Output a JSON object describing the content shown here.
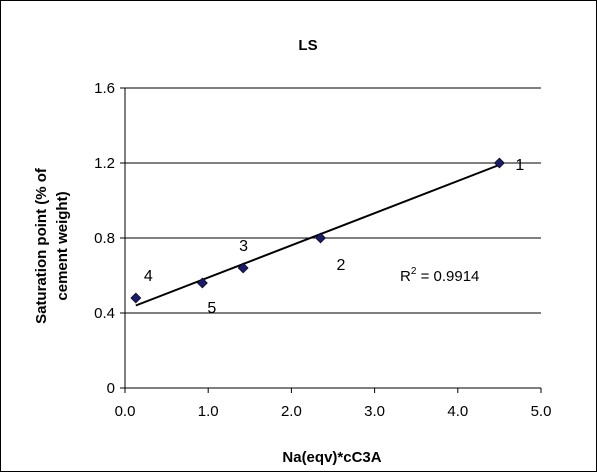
{
  "chart_data": {
    "type": "scatter",
    "title": "LS",
    "xlabel": "Na(eqv)*cC3A",
    "ylabel_line1": "Saturation point (% of",
    "ylabel_line2": "cement weight)",
    "xlim": [
      0,
      5
    ],
    "ylim": [
      0,
      1.6
    ],
    "x_ticks": [
      "0.0",
      "1.0",
      "2.0",
      "3.0",
      "4.0",
      "5.0"
    ],
    "y_ticks": [
      "0",
      "0.4",
      "0.8",
      "1.2",
      "1.6"
    ],
    "x_tick_values": [
      0,
      1,
      2,
      3,
      4,
      5
    ],
    "y_tick_values": [
      0,
      0.4,
      0.8,
      1.2,
      1.6
    ],
    "grid": "horizontal",
    "marker_color": "#1a1a6e",
    "points": [
      {
        "label": "1",
        "x": 4.5,
        "y": 1.2
      },
      {
        "label": "2",
        "x": 2.35,
        "y": 0.8
      },
      {
        "label": "3",
        "x": 1.42,
        "y": 0.64
      },
      {
        "label": "4",
        "x": 0.13,
        "y": 0.48
      },
      {
        "label": "5",
        "x": 0.93,
        "y": 0.56
      }
    ],
    "trendline": {
      "x": [
        0.13,
        4.5
      ],
      "y": [
        0.44,
        1.19
      ]
    },
    "r2_prefix": "R",
    "r2_sup": "2",
    "r2_value": " = 0.9914"
  }
}
